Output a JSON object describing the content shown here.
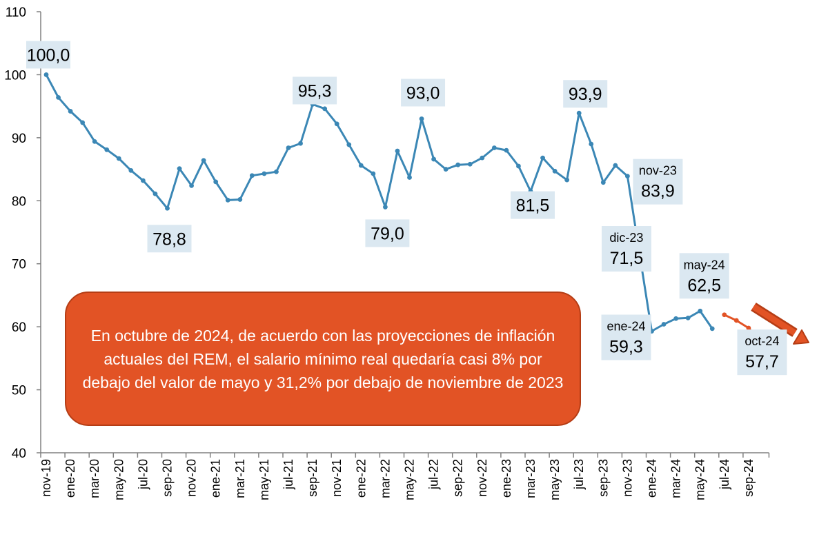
{
  "chart_data": {
    "type": "line",
    "ylim": [
      40,
      110
    ],
    "yticks": [
      40,
      50,
      60,
      70,
      80,
      90,
      100,
      110
    ],
    "grid": false,
    "legend": "none",
    "x": [
      "nov-19",
      "dic-19",
      "ene-20",
      "feb-20",
      "mar-20",
      "abr-20",
      "may-20",
      "jun-20",
      "jul-20",
      "ago-20",
      "sep-20",
      "oct-20",
      "nov-20",
      "dic-20",
      "ene-21",
      "feb-21",
      "mar-21",
      "abr-21",
      "may-21",
      "jun-21",
      "jul-21",
      "ago-21",
      "sep-21",
      "oct-21",
      "nov-21",
      "dic-21",
      "ene-22",
      "feb-22",
      "mar-22",
      "abr-22",
      "may-22",
      "jun-22",
      "jul-22",
      "ago-22",
      "sep-22",
      "oct-22",
      "nov-22",
      "dic-22",
      "ene-23",
      "feb-23",
      "mar-23",
      "abr-23",
      "may-23",
      "jun-23",
      "jul-23",
      "ago-23",
      "sep-23",
      "oct-23",
      "nov-23",
      "dic-23",
      "ene-24",
      "feb-24",
      "mar-24",
      "abr-24",
      "may-24",
      "jun-24",
      "jul-24",
      "ago-24",
      "sep-24",
      "oct-24"
    ],
    "x_tick_labels": [
      "nov-19",
      "ene-20",
      "mar-20",
      "may-20",
      "jul-20",
      "sep-20",
      "nov-20",
      "ene-21",
      "mar-21",
      "may-21",
      "jul-21",
      "sep-21",
      "nov-21",
      "ene-22",
      "mar-22",
      "may-22",
      "jul-22",
      "sep-22",
      "nov-22",
      "ene-23",
      "mar-23",
      "may-23",
      "jul-23",
      "sep-23",
      "nov-23",
      "ene-24",
      "mar-24",
      "may-24",
      "jul-24",
      "sep-24"
    ],
    "series": [
      {
        "color": "#3b87b5",
        "values": [
          100.0,
          96.4,
          94.2,
          92.4,
          89.4,
          88.1,
          86.7,
          84.8,
          83.2,
          81.1,
          78.8,
          85.1,
          82.4,
          86.4,
          83.0,
          80.1,
          80.2,
          84.0,
          84.3,
          84.6,
          88.4,
          89.1,
          95.3,
          94.6,
          92.2,
          88.9,
          85.6,
          84.3,
          79.0,
          87.9,
          83.7,
          93.0,
          86.6,
          85.0,
          85.7,
          85.8,
          86.8,
          88.4,
          88.0,
          85.5,
          81.5,
          86.8,
          84.7,
          83.3,
          93.9,
          89.0,
          82.9,
          85.6,
          83.9,
          71.5,
          59.3,
          60.4,
          61.3,
          61.4,
          62.5,
          59.7,
          null,
          null,
          null,
          null
        ]
      },
      {
        "color": "#e25325",
        "values": [
          null,
          null,
          null,
          null,
          null,
          null,
          null,
          null,
          null,
          null,
          null,
          null,
          null,
          null,
          null,
          null,
          null,
          null,
          null,
          null,
          null,
          null,
          null,
          null,
          null,
          null,
          null,
          null,
          null,
          null,
          null,
          null,
          null,
          null,
          null,
          null,
          null,
          null,
          null,
          null,
          null,
          null,
          null,
          null,
          null,
          null,
          null,
          null,
          null,
          null,
          null,
          null,
          null,
          null,
          null,
          null,
          61.9,
          61.0,
          59.8,
          57.7
        ]
      }
    ],
    "annotations": [
      {
        "index": 0,
        "value": "100,0",
        "date": ""
      },
      {
        "index": 10,
        "value": "78,8",
        "date": ""
      },
      {
        "index": 22,
        "value": "95,3",
        "date": ""
      },
      {
        "index": 28,
        "value": "79,0",
        "date": ""
      },
      {
        "index": 31,
        "value": "93,0",
        "date": ""
      },
      {
        "index": 40,
        "value": "81,5",
        "date": ""
      },
      {
        "index": 44,
        "value": "93,9",
        "date": ""
      },
      {
        "index": 48,
        "value": "83,9",
        "date": "nov-23"
      },
      {
        "index": 49,
        "value": "71,5",
        "date": "dic-23"
      },
      {
        "index": 50,
        "value": "59,3",
        "date": "ene-24"
      },
      {
        "index": 54,
        "value": "62,5",
        "date": "may-24"
      },
      {
        "index": 59,
        "value": "57,7",
        "date": "oct-24"
      }
    ],
    "callout_color": "#e25325",
    "callout_text": "En octubre de 2024, de acuerdo con las proyecciones de inflación actuales del REM, el salario mínimo real quedaría casi 8% por debajo del valor de mayo y 31,2% por debajo de noviembre de 2023"
  }
}
